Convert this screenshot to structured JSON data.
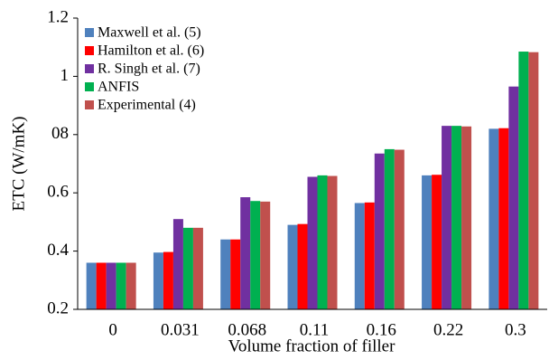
{
  "chart_data": {
    "type": "bar",
    "x_label": "Volume fraction of filler",
    "y_label": "ETC (W/mK)",
    "categories": [
      "0",
      "0.031",
      "0.068",
      "0.11",
      "0.16",
      "0.22",
      "0.3"
    ],
    "series": [
      {
        "name": "Maxwell et al. (5)",
        "color": "#4f81bd",
        "values": [
          0.36,
          0.395,
          0.44,
          0.49,
          0.565,
          0.66,
          0.82
        ]
      },
      {
        "name": "Hamilton et al. (6)",
        "color": "#ff0000",
        "values": [
          0.36,
          0.397,
          0.44,
          0.493,
          0.567,
          0.662,
          0.822
        ]
      },
      {
        "name": "R. Singh et al. (7)",
        "color": "#7030a0",
        "values": [
          0.36,
          0.51,
          0.585,
          0.655,
          0.735,
          0.83,
          0.965
        ]
      },
      {
        "name": "ANFIS",
        "color": "#00b050",
        "values": [
          0.36,
          0.48,
          0.572,
          0.66,
          0.75,
          0.83,
          1.085
        ]
      },
      {
        "name": "Experimental (4)",
        "color": "#c0504d",
        "values": [
          0.36,
          0.48,
          0.57,
          0.658,
          0.748,
          0.828,
          1.083
        ]
      }
    ],
    "ylim": [
      0.2,
      1.2
    ],
    "yticks": [
      0.2,
      0.4,
      0.6,
      {
        "value": 0.8,
        "label": "08"
      },
      1,
      1.2
    ],
    "grid": false,
    "legend": "upper left"
  }
}
